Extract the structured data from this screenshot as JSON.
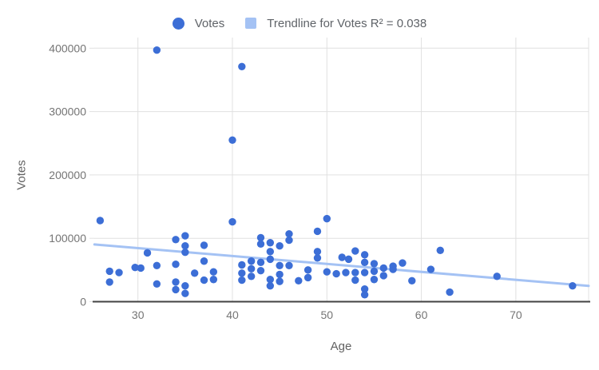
{
  "legend": {
    "votes_label": "Votes",
    "trendline_label": "Trendline for Votes R² = 0.038"
  },
  "axes": {
    "x_title": "Age",
    "y_title": "Votes"
  },
  "colors": {
    "series": "#3c6ed6",
    "trendline": "#a4c2f4",
    "grid": "#e0e0e0",
    "axis_line": "#424242",
    "tick_label": "#757575",
    "axis_title": "#616161",
    "legend_text": "#5f6368",
    "background": "#ffffff"
  },
  "chart_data": {
    "type": "scatter",
    "title": "",
    "xlabel": "Age",
    "ylabel": "Votes",
    "x_ticks": [
      30,
      40,
      50,
      60,
      70
    ],
    "y_ticks": [
      0,
      100000,
      200000,
      300000,
      400000
    ],
    "xlim": [
      25.4,
      77.7
    ],
    "ylim": [
      0,
      416000
    ],
    "grid": true,
    "legend_position": "top",
    "series": [
      {
        "name": "Votes",
        "points": [
          [
            26,
            128000
          ],
          [
            27,
            48000
          ],
          [
            27,
            31000
          ],
          [
            28,
            46000
          ],
          [
            29.7,
            54000
          ],
          [
            30.3,
            53000
          ],
          [
            31,
            77000
          ],
          [
            32,
            397000
          ],
          [
            32,
            57000
          ],
          [
            32,
            28000
          ],
          [
            34,
            98000
          ],
          [
            34,
            59000
          ],
          [
            34,
            31000
          ],
          [
            34,
            19000
          ],
          [
            35,
            104000
          ],
          [
            35,
            88000
          ],
          [
            35,
            78000
          ],
          [
            35,
            25000
          ],
          [
            35,
            13000
          ],
          [
            36,
            45000
          ],
          [
            37,
            89000
          ],
          [
            37,
            64000
          ],
          [
            37,
            34000
          ],
          [
            38,
            47000
          ],
          [
            38,
            35000
          ],
          [
            40,
            255000
          ],
          [
            40,
            126000
          ],
          [
            41,
            371000
          ],
          [
            41,
            58000
          ],
          [
            41,
            45000
          ],
          [
            41,
            34000
          ],
          [
            42,
            64000
          ],
          [
            42,
            52000
          ],
          [
            42,
            40000
          ],
          [
            43,
            101000
          ],
          [
            43,
            91000
          ],
          [
            43,
            62000
          ],
          [
            43,
            49000
          ],
          [
            44,
            93000
          ],
          [
            44,
            79000
          ],
          [
            44,
            67000
          ],
          [
            44,
            35000
          ],
          [
            44,
            25000
          ],
          [
            45,
            88000
          ],
          [
            45,
            57000
          ],
          [
            45,
            43000
          ],
          [
            45,
            32000
          ],
          [
            46,
            107000
          ],
          [
            46,
            97000
          ],
          [
            46,
            57000
          ],
          [
            47,
            33000
          ],
          [
            48,
            50000
          ],
          [
            48,
            38000
          ],
          [
            49,
            111000
          ],
          [
            49,
            79000
          ],
          [
            49,
            69000
          ],
          [
            50,
            131000
          ],
          [
            50,
            47000
          ],
          [
            51,
            44000
          ],
          [
            51.6,
            70000
          ],
          [
            52.3,
            67000
          ],
          [
            52,
            46000
          ],
          [
            53,
            80000
          ],
          [
            53,
            46000
          ],
          [
            53,
            34000
          ],
          [
            54,
            74000
          ],
          [
            54,
            62000
          ],
          [
            54,
            46000
          ],
          [
            54,
            20000
          ],
          [
            54,
            11000
          ],
          [
            55,
            60000
          ],
          [
            55,
            48000
          ],
          [
            55,
            35000
          ],
          [
            56,
            53000
          ],
          [
            56,
            41000
          ],
          [
            57,
            56000
          ],
          [
            57,
            51000
          ],
          [
            58,
            61000
          ],
          [
            59,
            33000
          ],
          [
            61,
            51000
          ],
          [
            62,
            81000
          ],
          [
            63,
            15000
          ],
          [
            68,
            40000
          ],
          [
            76,
            25000
          ]
        ]
      }
    ],
    "trendline": {
      "for_series": "Votes",
      "r_squared": 0.038,
      "start": {
        "x": 25.4,
        "y": 90300
      },
      "end": {
        "x": 77.7,
        "y": 24900
      }
    }
  }
}
